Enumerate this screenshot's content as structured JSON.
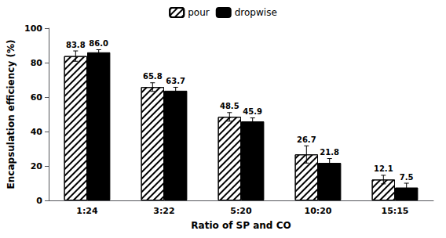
{
  "chart_data": {
    "type": "bar",
    "xlabel": "Ratio of SP and CO",
    "ylabel": "Encapsulation efficiency (%)",
    "categories": [
      "1:24",
      "3:22",
      "5:20",
      "10:20",
      "15:15"
    ],
    "series": [
      {
        "name": "pour",
        "color": "white",
        "values": [
          83.8,
          65.8,
          48.5,
          26.7,
          12.1
        ],
        "value_labels": [
          "83.8",
          "65.8",
          "48.5",
          "26.7",
          "12.1"
        ],
        "errors": [
          3.0,
          2.5,
          2.5,
          5.0,
          2.5
        ]
      },
      {
        "name": "dropwise",
        "color": "black",
        "values": [
          86.0,
          63.7,
          45.9,
          21.8,
          7.5
        ],
        "value_labels": [
          "86.0",
          "63.7",
          "45.9",
          "21.8",
          "7.5"
        ],
        "errors": [
          1.5,
          2.0,
          2.0,
          2.5,
          2.5
        ]
      }
    ],
    "ylim": [
      0,
      100
    ],
    "yticks": [
      0,
      20,
      40,
      60,
      80,
      100
    ],
    "data_labels": true,
    "legend": "top",
    "grid": false
  }
}
